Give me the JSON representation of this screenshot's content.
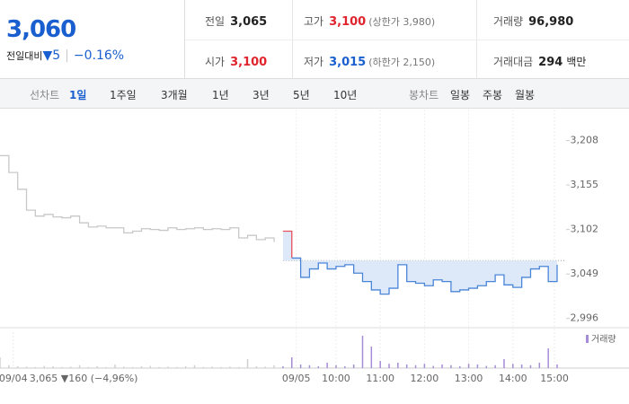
{
  "quote": {
    "price": "3,060",
    "change_label": "전일대비",
    "change": "▼5",
    "change_rate": "−0.16%",
    "color": "#1a5fcf"
  },
  "stats": [
    {
      "label": "전일",
      "value": "3,065",
      "color": "#222"
    },
    {
      "label": "고가",
      "value": "3,100",
      "note": "(상한가 3,980)",
      "color": "#e0242e"
    },
    {
      "label": "거래량",
      "value": "96,980",
      "color": "#222"
    },
    {
      "label": "시가",
      "value": "3,100",
      "color": "#e0242e"
    },
    {
      "label": "저가",
      "value": "3,015",
      "note": "(하한가 2,150)",
      "color": "#1a5fcf"
    },
    {
      "label": "거래대금",
      "value": "294",
      "unit": "백만",
      "color": "#222"
    }
  ],
  "tabs": {
    "line_label": "선차트",
    "periods": [
      "1일",
      "1주일",
      "3개월",
      "1년",
      "3년",
      "5년",
      "10년"
    ],
    "active_period": 0,
    "candle_label": "봉차트",
    "candles": [
      "일봉",
      "주봉",
      "월봉"
    ]
  },
  "chart_data": {
    "type": "line",
    "x": [
      0,
      1,
      2,
      3,
      4,
      5,
      6,
      7,
      8,
      9,
      10,
      11,
      12,
      13,
      14,
      15,
      16,
      17,
      18,
      19,
      20,
      21,
      22,
      23,
      24,
      25,
      26,
      27,
      28,
      29,
      30,
      31,
      32,
      33,
      34,
      35,
      36,
      37,
      38,
      39,
      40,
      41,
      42,
      43,
      44,
      45,
      46,
      47,
      48,
      49,
      50,
      51,
      52,
      53,
      54,
      55,
      56,
      57,
      58,
      59,
      60,
      61,
      62,
      63
    ],
    "xlim": [
      0,
      63
    ],
    "xticks": [
      {
        "value": 1.5,
        "label": "09/04"
      },
      {
        "value": 33.5,
        "label": "09/05"
      },
      {
        "value": 38,
        "label": "10:00"
      },
      {
        "value": 43,
        "label": "11:00"
      },
      {
        "value": 48,
        "label": "12:00"
      },
      {
        "value": 53,
        "label": "13:00"
      },
      {
        "value": 58,
        "label": "14:00"
      },
      {
        "value": 62.7,
        "label": "15:00"
      }
    ],
    "ylim": [
      2985,
      3245
    ],
    "yticks": [
      {
        "value": 2996,
        "label": "2,996"
      },
      {
        "value": 3049,
        "label": "3,049"
      },
      {
        "value": 3102,
        "label": "3,102"
      },
      {
        "value": 3155,
        "label": "3,155"
      },
      {
        "value": 3208,
        "label": "3,208"
      }
    ],
    "baseline": 3065,
    "up_color": "#e8505b",
    "area_color": "#dde9f8",
    "series": [
      {
        "color": "#c8c8c8",
        "values": [
          3190,
          3170,
          3150,
          3125,
          3118,
          3120,
          3117,
          3116,
          3118,
          3110,
          3105,
          3106,
          3104,
          3104,
          3098,
          3100,
          3103,
          3102,
          3101,
          3104,
          3102,
          3103,
          3104,
          3102,
          3103,
          3102,
          3104,
          3092,
          3095,
          3090,
          3092,
          3087,
          null,
          null,
          null,
          null,
          null,
          null,
          null,
          null,
          null,
          null,
          null,
          null,
          null,
          null,
          null,
          null,
          null,
          null,
          null,
          null,
          null,
          null,
          null,
          null,
          null,
          null,
          null,
          null,
          null,
          null,
          null,
          null
        ]
      },
      {
        "color": "#4a86d8",
        "values": [
          null,
          null,
          null,
          null,
          null,
          null,
          null,
          null,
          null,
          null,
          null,
          null,
          null,
          null,
          null,
          null,
          null,
          null,
          null,
          null,
          null,
          null,
          null,
          null,
          null,
          null,
          null,
          null,
          null,
          null,
          null,
          null,
          3100,
          3068,
          3045,
          3055,
          3062,
          3055,
          3058,
          3060,
          3050,
          3040,
          3030,
          3025,
          3032,
          3060,
          3040,
          3038,
          3035,
          3042,
          3040,
          3028,
          3030,
          3032,
          3035,
          3040,
          3048,
          3036,
          3033,
          3045,
          3055,
          3058,
          3040,
          3060
        ]
      }
    ],
    "volume_ylim": [
      0,
      100
    ],
    "volume": [
      {
        "color": "#d0d0d0",
        "values": [
          30,
          8,
          5,
          4,
          3,
          6,
          5,
          3,
          4,
          8,
          3,
          5,
          3,
          10,
          4,
          3,
          5,
          6,
          3,
          4,
          3,
          5,
          8,
          3,
          4,
          3,
          4,
          3,
          25,
          5,
          4,
          8,
          null,
          null,
          null,
          null,
          null,
          null,
          null,
          null,
          null,
          null,
          null,
          null,
          null,
          null,
          null,
          null,
          null,
          null,
          null,
          null,
          null,
          null,
          null,
          null,
          null,
          null,
          null,
          null,
          null,
          null,
          null,
          null
        ]
      },
      {
        "name": "거래량",
        "color": "#a58cd6",
        "values": [
          null,
          null,
          null,
          null,
          null,
          null,
          null,
          null,
          null,
          null,
          null,
          null,
          null,
          null,
          null,
          null,
          null,
          null,
          null,
          null,
          null,
          null,
          null,
          null,
          null,
          null,
          null,
          null,
          null,
          null,
          null,
          null,
          5,
          30,
          10,
          8,
          5,
          15,
          8,
          5,
          10,
          90,
          60,
          20,
          12,
          15,
          10,
          8,
          12,
          6,
          10,
          8,
          5,
          12,
          10,
          6,
          8,
          25,
          12,
          10,
          8,
          15,
          55,
          10
        ]
      }
    ],
    "annotation": "3,065 ▼160 (−4,96%)"
  }
}
